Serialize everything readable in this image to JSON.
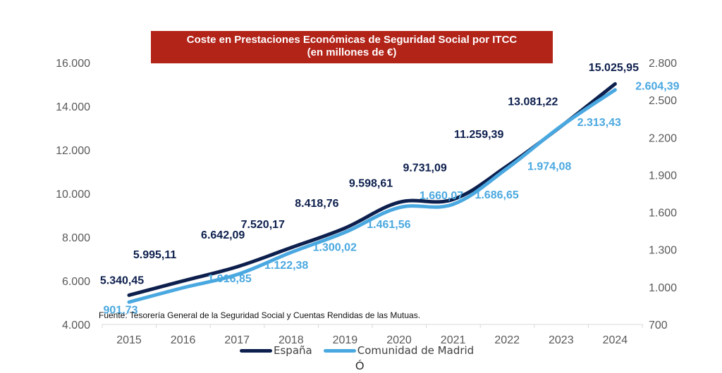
{
  "chart_data": {
    "type": "line",
    "title": "Coste en Prestaciones Económicas de Seguridad Social por ITCC",
    "subtitle": "(en millones de €)",
    "categories": [
      "2015",
      "2016",
      "2017",
      "2018",
      "2019",
      "2020",
      "2021",
      "2022",
      "2023",
      "2024"
    ],
    "series": [
      {
        "name": "España",
        "axis": "left",
        "color": "#0d1f4d",
        "values": [
          5340.45,
          5995.11,
          6642.09,
          7520.17,
          8418.76,
          9598.61,
          9731.09,
          11259.39,
          13081.22,
          15025.95
        ],
        "labels": [
          "5.340,45",
          "5.995,11",
          "6.642,09",
          "7.520,17",
          "8.418,76",
          "9.598,61",
          "9.731,09",
          "11.259,39",
          "13.081,22",
          "15.025,95"
        ]
      },
      {
        "name": "Comunidad de Madrid",
        "axis": "right",
        "color": "#4aa8e0",
        "values": [
          901.73,
          1016.85,
          1122.38,
          1300.02,
          1461.56,
          1660.07,
          1686.65,
          1974.08,
          2313.43,
          2604.39
        ],
        "labels": [
          "901,73",
          "1.016,85",
          "1.122,38",
          "1.300,02",
          "1.461,56",
          "1.660,07",
          "1.686,65",
          "1.974,08",
          "2.313,43",
          "2.604,39"
        ]
      }
    ],
    "y_left": {
      "min": 4000,
      "max": 16000,
      "ticks": [
        "4.000",
        "6.000",
        "8.000",
        "10.000",
        "12.000",
        "14.000",
        "16.000"
      ],
      "tick_values": [
        4000,
        6000,
        8000,
        10000,
        12000,
        14000,
        16000
      ]
    },
    "y_right": {
      "min": 700,
      "max": 2800,
      "ticks": [
        "700",
        "1.000",
        "1.300",
        "1.600",
        "1.900",
        "2.200",
        "2.500",
        "2.800"
      ],
      "tick_values": [
        700,
        1000,
        1300,
        1600,
        1900,
        2200,
        2500,
        2800
      ]
    },
    "xlabel": "",
    "ylabel": "",
    "grid": false,
    "legend_position": "bottom",
    "source": "Fuente: Tesorería General de la Seguridad Social y Cuentas Rendidas de las Mutuas."
  },
  "footer_fragment": "Ó"
}
